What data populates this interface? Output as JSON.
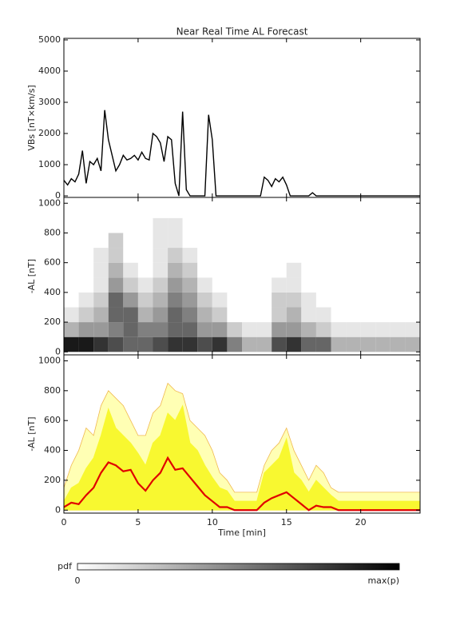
{
  "chart_data": [
    {
      "type": "line",
      "title": "Near Real Time AL Forecast",
      "ylabel": "VBs [nT×km/s]",
      "x": [
        0,
        0.25,
        0.5,
        0.75,
        1,
        1.25,
        1.5,
        1.75,
        2,
        2.25,
        2.5,
        2.75,
        3,
        3.25,
        3.5,
        3.75,
        4,
        4.25,
        4.5,
        4.75,
        5,
        5.25,
        5.5,
        5.75,
        6,
        6.25,
        6.5,
        6.75,
        7,
        7.25,
        7.5,
        7.75,
        8,
        8.25,
        8.5,
        8.75,
        9,
        9.25,
        9.5,
        9.75,
        10,
        10.25,
        10.5,
        10.75,
        11,
        11.25,
        11.5,
        11.75,
        12,
        12.25,
        12.5,
        12.75,
        13,
        13.25,
        13.5,
        13.75,
        14,
        14.25,
        14.5,
        14.75,
        15,
        15.25,
        15.5,
        15.75,
        16,
        16.25,
        16.5,
        16.75,
        17,
        18,
        19,
        20,
        21,
        22,
        23,
        24
      ],
      "series": [
        {
          "color": "#000000",
          "values": [
            500,
            350,
            550,
            450,
            700,
            1450,
            400,
            1100,
            1000,
            1200,
            800,
            2750,
            1800,
            1300,
            800,
            1000,
            1300,
            1150,
            1200,
            1300,
            1150,
            1400,
            1200,
            1150,
            2000,
            1900,
            1700,
            1100,
            1900,
            1800,
            400,
            0,
            2700,
            200,
            0,
            0,
            0,
            0,
            0,
            2600,
            1800,
            0,
            0,
            0,
            0,
            0,
            0,
            0,
            0,
            0,
            0,
            0,
            0,
            0,
            600,
            500,
            300,
            550,
            450,
            600,
            350,
            0,
            0,
            0,
            0,
            0,
            0,
            100,
            0,
            0,
            0,
            0,
            0,
            0,
            0,
            0
          ]
        }
      ],
      "xlim": [
        0,
        24
      ],
      "xticks": [
        0,
        5,
        10,
        15,
        20
      ],
      "ylim": [
        -50,
        5050
      ],
      "yticks": [
        0,
        1000,
        2000,
        3000,
        4000,
        5000
      ]
    },
    {
      "type": "heatmap",
      "ylabel": "-AL [nT]",
      "x_bins": [
        0,
        1,
        2,
        3,
        4,
        5,
        6,
        7,
        8,
        9,
        10,
        11,
        12,
        13,
        14,
        15,
        16,
        17,
        18,
        19,
        20,
        21,
        22,
        23,
        24
      ],
      "y_bins": [
        0,
        100,
        200,
        300,
        400,
        500,
        600,
        700,
        800,
        900
      ],
      "z": [
        [
          0.9,
          0.9,
          0.8,
          0.7,
          0.6,
          0.6,
          0.7,
          0.8,
          0.8,
          0.7,
          0.8,
          0.5,
          0.3,
          0.3,
          0.7,
          0.8,
          0.6,
          0.6,
          0.3,
          0.3,
          0.3,
          0.3,
          0.3,
          0.3
        ],
        [
          0.3,
          0.4,
          0.4,
          0.5,
          0.6,
          0.5,
          0.5,
          0.6,
          0.6,
          0.4,
          0.4,
          0.2,
          0.1,
          0.1,
          0.4,
          0.4,
          0.3,
          0.2,
          0.1,
          0.1,
          0.1,
          0.1,
          0.1,
          0.1
        ],
        [
          0.1,
          0.2,
          0.3,
          0.6,
          0.6,
          0.3,
          0.4,
          0.6,
          0.5,
          0.3,
          0.2,
          0,
          0,
          0,
          0.2,
          0.3,
          0.1,
          0.1,
          0,
          0,
          0,
          0,
          0,
          0
        ],
        [
          0,
          0.1,
          0.2,
          0.6,
          0.4,
          0.2,
          0.3,
          0.5,
          0.4,
          0.2,
          0.1,
          0,
          0,
          0,
          0.2,
          0.2,
          0.1,
          0,
          0,
          0,
          0,
          0,
          0,
          0
        ],
        [
          0,
          0,
          0.1,
          0.4,
          0.2,
          0.1,
          0.2,
          0.4,
          0.3,
          0.1,
          0,
          0,
          0,
          0,
          0.1,
          0.1,
          0,
          0,
          0,
          0,
          0,
          0,
          0,
          0
        ],
        [
          0,
          0,
          0.1,
          0.3,
          0.1,
          0,
          0.1,
          0.3,
          0.2,
          0,
          0,
          0,
          0,
          0,
          0,
          0.1,
          0,
          0,
          0,
          0,
          0,
          0,
          0,
          0
        ],
        [
          0,
          0,
          0.1,
          0.2,
          0,
          0,
          0.1,
          0.2,
          0.1,
          0,
          0,
          0,
          0,
          0,
          0,
          0,
          0,
          0,
          0,
          0,
          0,
          0,
          0,
          0
        ],
        [
          0,
          0,
          0,
          0.2,
          0,
          0,
          0.1,
          0.1,
          0,
          0,
          0,
          0,
          0,
          0,
          0,
          0,
          0,
          0,
          0,
          0,
          0,
          0,
          0,
          0
        ],
        [
          0,
          0,
          0,
          0,
          0,
          0,
          0.1,
          0.1,
          0,
          0,
          0,
          0,
          0,
          0,
          0,
          0,
          0,
          0,
          0,
          0,
          0,
          0,
          0,
          0
        ]
      ],
      "colorbar": {
        "label": "pdf",
        "min_label": "0",
        "max_label": "max(p)"
      },
      "xlim": [
        0,
        24
      ],
      "xticks": [
        0,
        5,
        10,
        15,
        20
      ],
      "ylim": [
        -20,
        1039
      ],
      "yticks": [
        0,
        200,
        400,
        600,
        800,
        1000
      ]
    },
    {
      "type": "band",
      "ylabel": "-AL [nT]",
      "xlabel": "Time [min]",
      "x": [
        0,
        0.5,
        1,
        1.5,
        2,
        2.5,
        3,
        3.5,
        4,
        4.5,
        5,
        5.5,
        6,
        6.5,
        7,
        7.5,
        8,
        8.5,
        9,
        9.5,
        10,
        10.5,
        11,
        11.5,
        12,
        12.5,
        13,
        13.5,
        14,
        14.5,
        15,
        15.5,
        16,
        16.5,
        17,
        17.5,
        18,
        18.5,
        19,
        19.5,
        20,
        20.5,
        21,
        21.5,
        22,
        22.5,
        23,
        23.5,
        24
      ],
      "series": [
        {
          "style": "area",
          "color": "#ffffb4",
          "line_color": "#f0b850",
          "values": [
            150,
            300,
            400,
            550,
            500,
            700,
            800,
            750,
            700,
            600,
            500,
            500,
            650,
            700,
            850,
            800,
            780,
            600,
            550,
            500,
            400,
            250,
            200,
            120,
            120,
            120,
            120,
            300,
            400,
            450,
            550,
            400,
            300,
            200,
            300,
            250,
            150,
            120,
            120,
            120,
            120,
            120,
            120,
            120,
            120,
            120,
            120,
            120,
            120
          ]
        },
        {
          "style": "area",
          "color": "#f8f830",
          "line_color": "#f8f830",
          "values": [
            60,
            150,
            180,
            280,
            350,
            500,
            680,
            550,
            500,
            450,
            380,
            300,
            450,
            500,
            650,
            600,
            700,
            450,
            400,
            300,
            220,
            150,
            130,
            60,
            60,
            60,
            60,
            250,
            300,
            350,
            480,
            250,
            200,
            120,
            200,
            150,
            100,
            60,
            60,
            60,
            60,
            60,
            60,
            60,
            60,
            60,
            60,
            60,
            60
          ]
        },
        {
          "style": "line",
          "color": "#e00000",
          "values": [
            20,
            50,
            40,
            100,
            150,
            250,
            320,
            300,
            260,
            270,
            180,
            130,
            200,
            250,
            350,
            270,
            280,
            220,
            160,
            100,
            60,
            20,
            20,
            0,
            0,
            0,
            0,
            50,
            80,
            100,
            120,
            80,
            40,
            0,
            30,
            20,
            20,
            0,
            0,
            0,
            0,
            0,
            0,
            0,
            0,
            0,
            0,
            0,
            0
          ]
        }
      ],
      "xlim": [
        0,
        24
      ],
      "xticks": [
        0,
        5,
        10,
        15,
        20
      ],
      "ylim": [
        -20,
        1040
      ],
      "yticks": [
        0,
        200,
        400,
        600,
        800,
        1000
      ]
    }
  ]
}
